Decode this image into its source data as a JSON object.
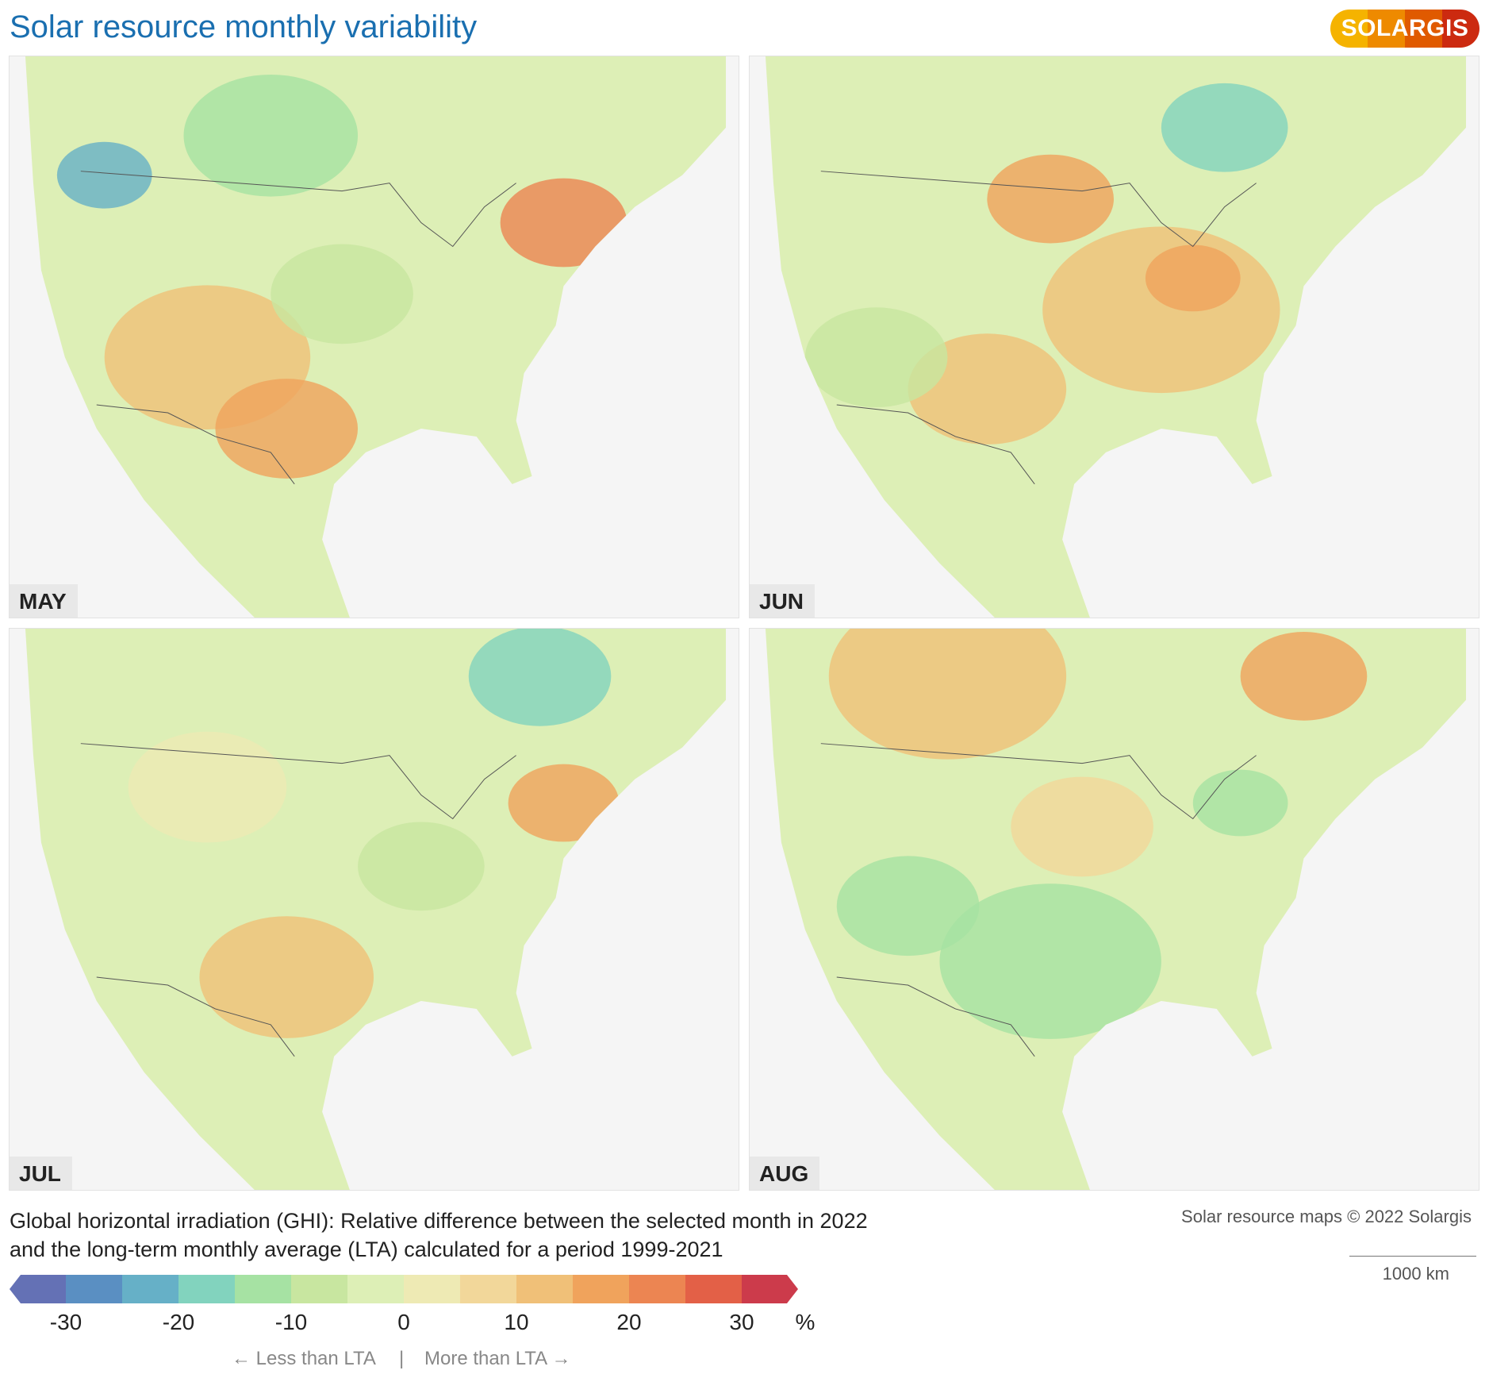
{
  "title": "Solar resource monthly variability",
  "logo": {
    "text": "SOLARGIS",
    "colors": [
      "#f5b300",
      "#ee8a00",
      "#e05a00",
      "#cc2a10"
    ]
  },
  "panels": [
    {
      "month": "MAY"
    },
    {
      "month": "JUN"
    },
    {
      "month": "JUL"
    },
    {
      "month": "AUG"
    }
  ],
  "caption": {
    "line1": "Global horizontal irradiation (GHI): Relative difference between the selected month in 2022",
    "line2": "and the long-term monthly average (LTA) calculated for a period 1999-2021"
  },
  "copyright": "Solar resource maps © 2022 Solargis",
  "scale": "1000 km",
  "legend": {
    "colors": [
      "#6471b5",
      "#5a8fc2",
      "#66b0c7",
      "#82d3be",
      "#a6e2a3",
      "#c8e6a0",
      "#ddefb6",
      "#eeeab4",
      "#f2d79a",
      "#f0c078",
      "#f0a35c",
      "#ec8552",
      "#e36047",
      "#cc3b4b"
    ],
    "ticks": [
      "-30",
      "-20",
      "-10",
      "0",
      "10",
      "20",
      "30"
    ],
    "unit": "%",
    "less": "←  Less than LTA",
    "sep": "|",
    "more": "More than LTA  →"
  }
}
